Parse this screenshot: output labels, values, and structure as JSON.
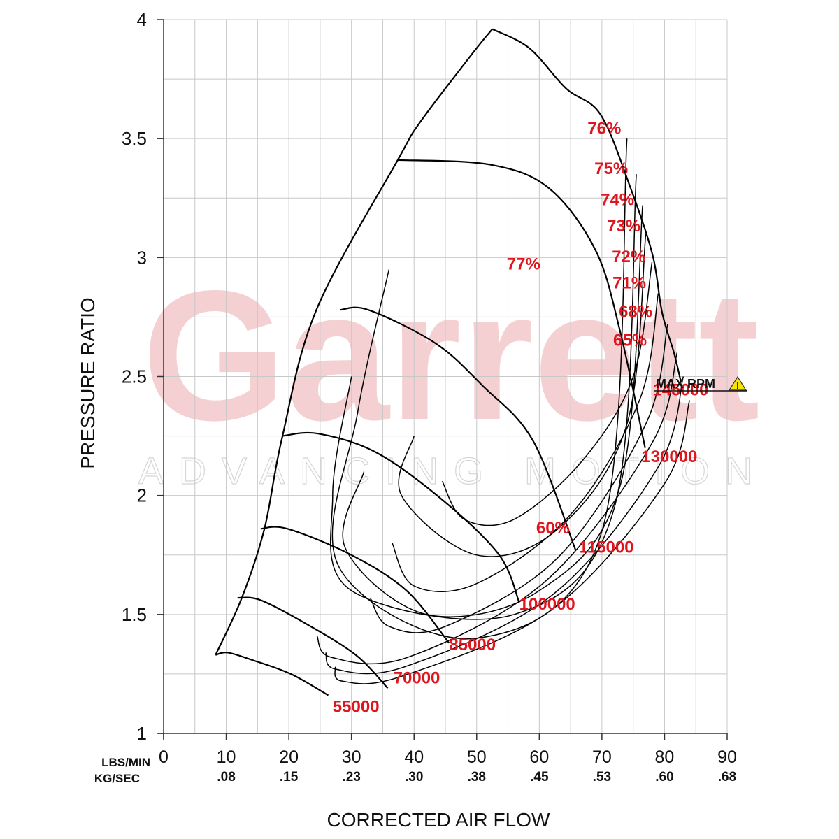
{
  "watermark": {
    "brand": "Garrett",
    "tagline": "ADVANCING MOTION"
  },
  "colors": {
    "curve": "#000000",
    "label_red": "#e0161e",
    "grid": "#c8c8c8",
    "watermark": "#f3c8cc",
    "warning": "#f7e600"
  },
  "chart_data": {
    "type": "line",
    "title": "",
    "xlabel": "CORRECTED AIR FLOW",
    "ylabel": "PRESSURE RATIO",
    "xlim": [
      0,
      90
    ],
    "ylim": [
      1,
      4
    ],
    "grid": true,
    "x_units": [
      {
        "label": "LBS/MIN",
        "ticks": [
          "0",
          "10",
          "20",
          "30",
          "40",
          "50",
          "60",
          "70",
          "80",
          "90"
        ]
      },
      {
        "label": "KG/SEC",
        "ticks": [
          "",
          ".08",
          ".15",
          ".23",
          ".30",
          ".38",
          ".45",
          ".53",
          ".60",
          ".68"
        ]
      }
    ],
    "x_tick_values": [
      0,
      10,
      20,
      30,
      40,
      50,
      60,
      70,
      80,
      90
    ],
    "y_ticks": [
      {
        "value": 1,
        "label": "1"
      },
      {
        "value": 1.5,
        "label": "1.5"
      },
      {
        "value": 2,
        "label": "2"
      },
      {
        "value": 2.5,
        "label": "2.5"
      },
      {
        "value": 3,
        "label": "3"
      },
      {
        "value": 3.5,
        "label": "3.5"
      },
      {
        "value": 4,
        "label": "4"
      }
    ],
    "surge_line": [
      [
        8.3,
        1.33
      ],
      [
        12.5,
        1.57
      ],
      [
        16.1,
        1.86
      ],
      [
        18.9,
        2.24
      ],
      [
        24.4,
        2.78
      ],
      [
        37.4,
        3.41
      ],
      [
        41,
        3.57
      ],
      [
        49.4,
        3.86
      ],
      [
        52.5,
        3.96
      ]
    ],
    "speed_lines": [
      {
        "name": "55000",
        "points": [
          [
            8.3,
            1.33
          ],
          [
            10.2,
            1.34
          ],
          [
            14,
            1.31
          ],
          [
            20.3,
            1.25
          ],
          [
            26.3,
            1.16
          ]
        ],
        "label": [
          27,
          1.09
        ]
      },
      {
        "name": "70000",
        "points": [
          [
            11.8,
            1.57
          ],
          [
            15.5,
            1.56
          ],
          [
            22.8,
            1.46
          ],
          [
            30.7,
            1.33
          ],
          [
            35.8,
            1.19
          ]
        ],
        "label": [
          36.7,
          1.21
        ]
      },
      {
        "name": "85000",
        "points": [
          [
            15.5,
            1.86
          ],
          [
            19.8,
            1.86
          ],
          [
            30,
            1.75
          ],
          [
            38.8,
            1.6
          ],
          [
            45.6,
            1.38
          ]
        ],
        "label": [
          45.6,
          1.35
        ]
      },
      {
        "name": "100000",
        "points": [
          [
            18.9,
            2.25
          ],
          [
            24.7,
            2.26
          ],
          [
            34,
            2.18
          ],
          [
            44.6,
            1.98
          ],
          [
            53.6,
            1.75
          ],
          [
            56.8,
            1.55
          ]
        ],
        "label": [
          56.8,
          1.52
        ]
      },
      {
        "name": "115000",
        "points": [
          [
            28.2,
            2.78
          ],
          [
            32.7,
            2.78
          ],
          [
            43.4,
            2.64
          ],
          [
            51,
            2.46
          ],
          [
            59,
            2.23
          ],
          [
            65.8,
            1.77
          ]
        ],
        "label": [
          66.3,
          1.76
        ]
      },
      {
        "name": "130000",
        "points": [
          [
            37.4,
            3.41
          ],
          [
            52.2,
            3.39
          ],
          [
            61.6,
            3.29
          ],
          [
            69,
            3.03
          ],
          [
            72.9,
            2.69
          ],
          [
            76.9,
            2.2
          ]
        ],
        "label": [
          76.3,
          2.14
        ]
      },
      {
        "name": "145000",
        "points": [
          [
            52.5,
            3.96
          ],
          [
            58.4,
            3.88
          ],
          [
            64.3,
            3.71
          ],
          [
            69.8,
            3.6
          ],
          [
            74.6,
            3.29
          ],
          [
            78.1,
            3.01
          ],
          [
            79.6,
            2.77
          ],
          [
            81.5,
            2.6
          ],
          [
            82.6,
            2.48
          ]
        ],
        "label": [
          78.1,
          2.42
        ]
      }
    ],
    "max_rpm_label": "MAX RPM",
    "efficiency_islands": [
      {
        "name": "77%",
        "label": [
          54.8,
          2.95
        ]
      },
      {
        "name": "76%",
        "label": [
          67.7,
          3.52
        ]
      },
      {
        "name": "75%",
        "label": [
          68.8,
          3.35
        ]
      },
      {
        "name": "74%",
        "label": [
          69.8,
          3.22
        ]
      },
      {
        "name": "73%",
        "label": [
          70.8,
          3.11
        ]
      },
      {
        "name": "72%",
        "label": [
          71.6,
          2.98
        ]
      },
      {
        "name": "71%",
        "label": [
          71.7,
          2.87
        ]
      },
      {
        "name": "68%",
        "label": [
          72.7,
          2.75
        ]
      },
      {
        "name": "65%",
        "label": [
          71.8,
          2.63
        ]
      },
      {
        "name": "60%",
        "label": [
          59.5,
          1.84
        ]
      }
    ]
  }
}
